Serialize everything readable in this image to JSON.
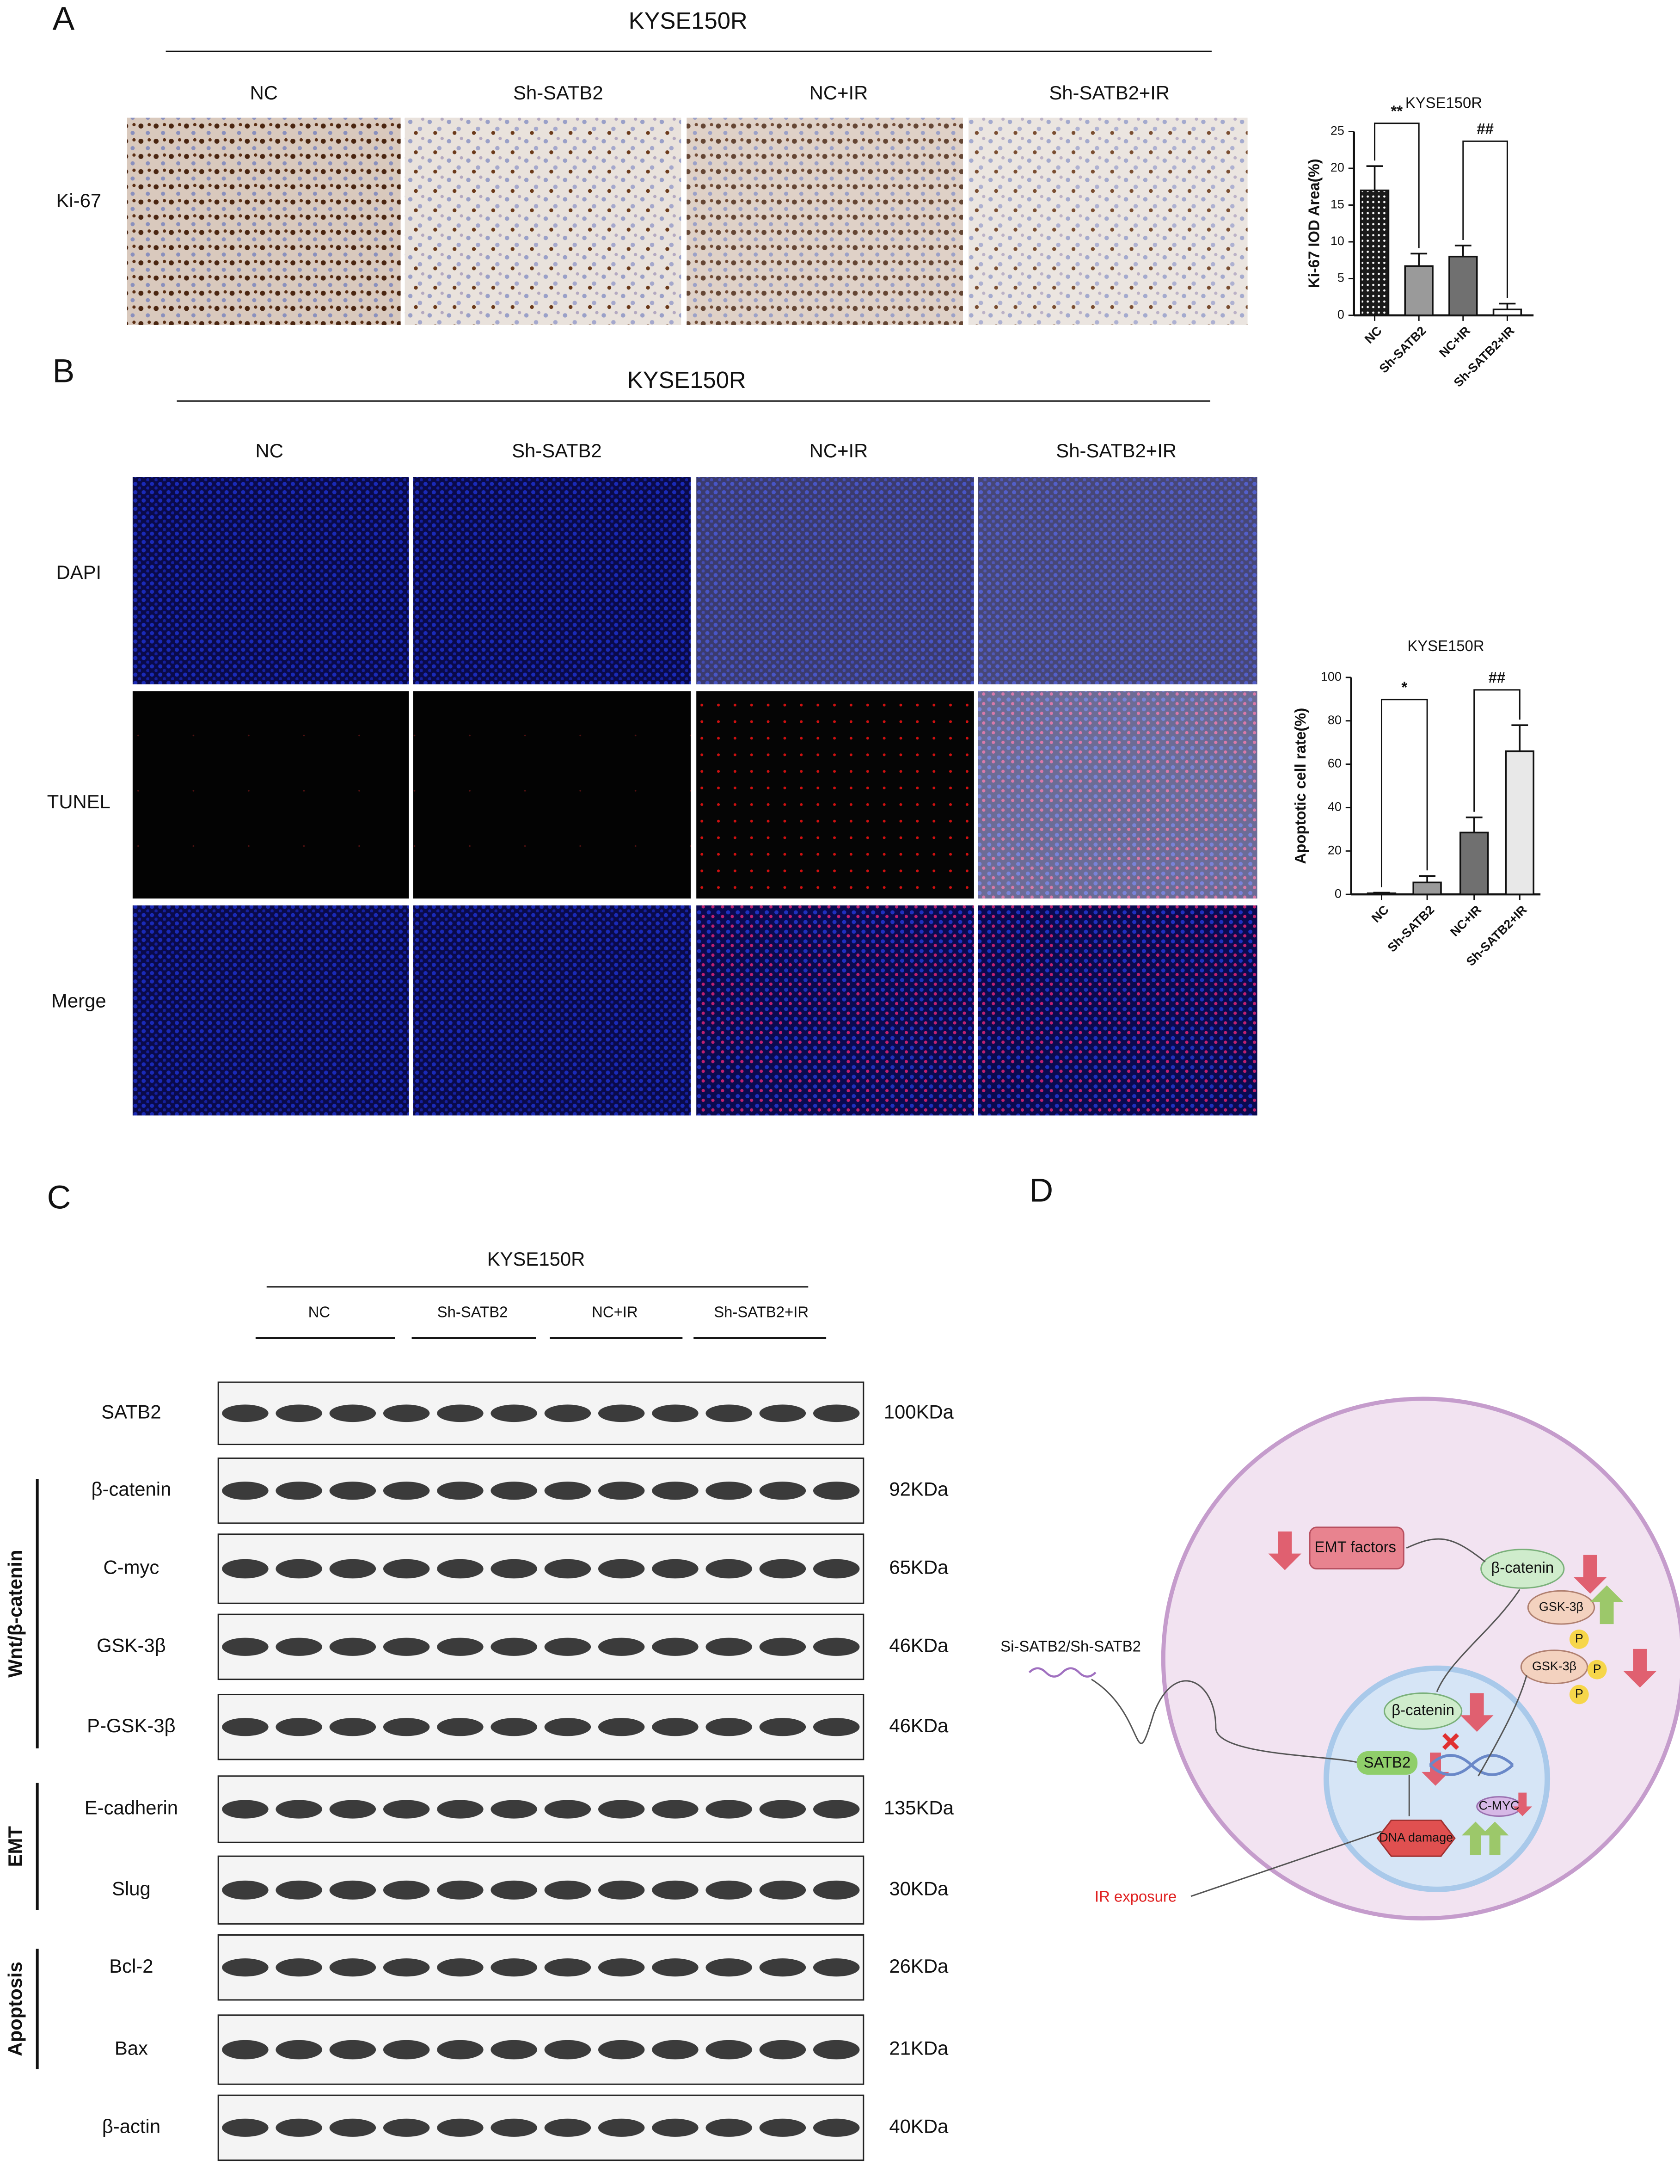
{
  "panels": {
    "A": {
      "label": "A",
      "title": "KYSE150R",
      "columns": [
        "NC",
        "Sh-SATB2",
        "NC+IR",
        "Sh-SATB2+IR"
      ],
      "rows": [
        "Ki-67"
      ]
    },
    "B": {
      "label": "B",
      "title": "KYSE150R",
      "columns": [
        "NC",
        "Sh-SATB2",
        "NC+IR",
        "Sh-SATB2+IR"
      ],
      "rows": [
        "DAPI",
        "TUNEL",
        "Merge"
      ]
    },
    "C": {
      "label": "C",
      "title": "KYSE150R",
      "groups": [
        "NC",
        "Sh-SATB2",
        "NC+IR",
        "Sh-SATB2+IR"
      ],
      "proteins": [
        "SATB2",
        "β-catenin",
        "C-myc",
        "GSK-3β",
        "P-GSK-3β",
        "E-cadherin",
        "Slug",
        "Bcl-2",
        "Bax",
        "β-actin"
      ],
      "sizes": [
        "100KDa",
        "92KDa",
        "65KDa",
        "46KDa",
        "46KDa",
        "135KDa",
        "30KDa",
        "26KDa",
        "21KDa",
        "40KDa"
      ],
      "sections": [
        "Wnt/β-catenin",
        "EMT",
        "Apoptosis"
      ]
    },
    "D": {
      "label": "D",
      "labels": [
        "EMT factors",
        "β-catenin",
        "GSK-3β",
        "P",
        "GSK-3β",
        "P",
        "P",
        "Si-SATB2/Sh-SATB2",
        "β-catenin",
        "SATB2",
        "C-MYC",
        "DNA damage",
        "IR exposure"
      ]
    }
  },
  "chart_data": [
    {
      "type": "bar",
      "title": "KYSE150R",
      "y_label": "Ki-67 IOD Area(%)",
      "categories": [
        "NC",
        "Sh-SATB2",
        "NC+IR",
        "Sh-SATB2+IR"
      ],
      "values": [
        17,
        6.7,
        8,
        0.8
      ],
      "errors": [
        3.3,
        1.7,
        1.5,
        0.8
      ],
      "colors": [
        "#1a1a1a",
        "#9a9a9a",
        "#707070",
        "#ffffff"
      ],
      "annotations": [
        "**",
        "##"
      ],
      "ylim": [
        0,
        25
      ],
      "yticks": [
        0,
        5,
        10,
        15,
        20,
        25
      ]
    },
    {
      "type": "bar",
      "title": "KYSE150R",
      "y_label": "Apoptotic cell rate(%)",
      "categories": [
        "NC",
        "Sh-SATB2",
        "NC+IR",
        "Sh-SATB2+IR"
      ],
      "values": [
        0.5,
        5.5,
        28.5,
        66
      ],
      "errors": [
        0.3,
        3,
        7,
        12
      ],
      "colors": [
        "#1a1a1a",
        "#9a9a9a",
        "#707070",
        "#e8e8e8"
      ],
      "annotations": [
        "*",
        "##"
      ],
      "ylim": [
        0,
        100
      ],
      "yticks": [
        0,
        20,
        40,
        60,
        80,
        100
      ]
    }
  ]
}
